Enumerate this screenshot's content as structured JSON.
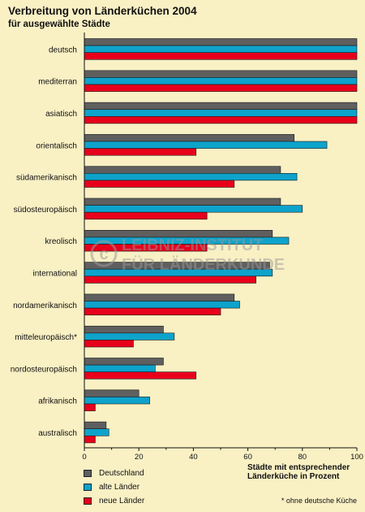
{
  "title": "Verbreitung von Länderküchen 2004",
  "subtitle": "für ausgewählte Städte",
  "axis_caption_line1": "Städte mit entsprechender",
  "axis_caption_line2": "Länderküche in Prozent",
  "footnote": "* ohne deutsche Küche",
  "watermark_line1": "LEIBNIZ-INSTITUT",
  "watermark_line2": "FÜR LÄNDERKUNDE",
  "colors": {
    "background": "#f9f0c4",
    "deutschland": "#5f5f5f",
    "alte_laender": "#0ea3cb",
    "neue_laender": "#e8001b"
  },
  "chart_data": {
    "type": "bar",
    "orientation": "horizontal",
    "title": "Verbreitung von Länderküchen 2004",
    "subtitle": "für ausgewählte Städte",
    "xlabel": "Städte mit entsprechender Länderküche in Prozent",
    "xlim": [
      0,
      100
    ],
    "xticks": [
      "0",
      "20",
      "40",
      "60",
      "80",
      "100"
    ],
    "grid": false,
    "legend_position": "bottom-left",
    "categories": [
      "deutsch",
      "mediterran",
      "asiatisch",
      "orientalisch",
      "südamerikanisch",
      "südosteuropäisch",
      "kreolisch",
      "international",
      "nordamerikanisch",
      "mitteleuropäisch*",
      "nordosteuropäisch",
      "afrikanisch",
      "australisch"
    ],
    "series": [
      {
        "name": "Deutschland",
        "color": "#5f5f5f",
        "values": [
          100,
          100,
          100,
          77,
          72,
          72,
          69,
          68,
          55,
          29,
          29,
          20,
          8
        ]
      },
      {
        "name": "alte Länder",
        "color": "#0ea3cb",
        "values": [
          100,
          100,
          100,
          89,
          78,
          80,
          75,
          69,
          57,
          33,
          26,
          24,
          9
        ]
      },
      {
        "name": "neue Länder",
        "color": "#e8001b",
        "values": [
          100,
          100,
          100,
          41,
          55,
          45,
          45,
          63,
          50,
          18,
          41,
          4,
          4
        ]
      }
    ]
  }
}
